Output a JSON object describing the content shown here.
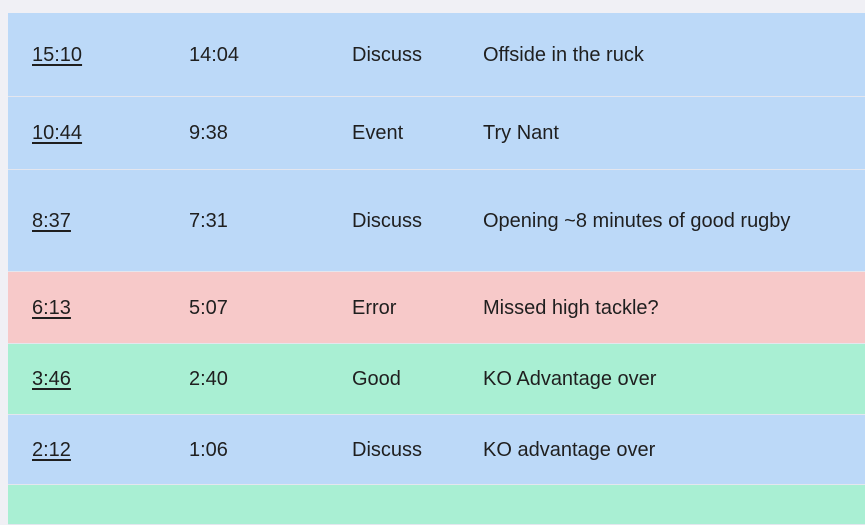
{
  "rows": [
    {
      "game_time": "15:10",
      "clock": "14:04",
      "type": "Discuss",
      "note": "Offside in the ruck",
      "color": "#bcd9f8"
    },
    {
      "game_time": "10:44",
      "clock": "9:38",
      "type": "Event",
      "note": "Try Nant",
      "color": "#bcd9f8"
    },
    {
      "game_time": "8:37",
      "clock": "7:31",
      "type": "Discuss",
      "note": "Opening ~8 minutes of good rugby",
      "color": "#bcd9f8"
    },
    {
      "game_time": "6:13",
      "clock": "5:07",
      "type": "Error",
      "note": "Missed high tackle?",
      "color": "#f7c9c9"
    },
    {
      "game_time": "3:46",
      "clock": "2:40",
      "type": "Good",
      "note": "KO Advantage over",
      "color": "#a9efd3"
    },
    {
      "game_time": "2:12",
      "clock": "1:06",
      "type": "Discuss",
      "note": "KO advantage over",
      "color": "#bcd9f8"
    }
  ],
  "partial_row_color": "#a9efd3"
}
